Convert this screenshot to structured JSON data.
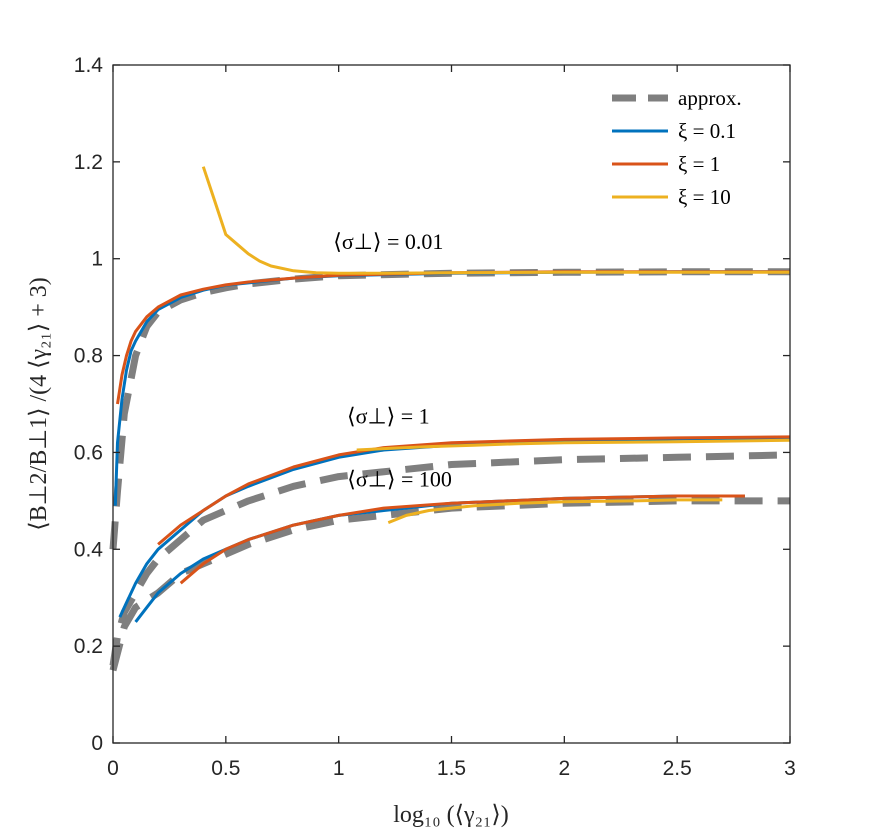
{
  "chart_data": {
    "type": "line",
    "title": "",
    "xlabel": "log₁₀ (⟨γ₂₁⟩)",
    "ylabel": "⟨B⊥2/B⊥1⟩ /(4 ⟨γ₂₁⟩ + 3)",
    "xlim": [
      0,
      3
    ],
    "ylim": [
      0,
      1.4
    ],
    "xticks": [
      0,
      0.5,
      1,
      1.5,
      2,
      2.5,
      3
    ],
    "xtick_labels": [
      "0",
      "0.5",
      "1",
      "1.5",
      "2",
      "2.5",
      "3"
    ],
    "yticks": [
      0,
      0.2,
      0.4,
      0.6,
      0.8,
      1,
      1.2,
      1.4
    ],
    "ytick_labels": [
      "0",
      "0.2",
      "0.4",
      "0.6",
      "0.8",
      "1",
      "1.2",
      "1.4"
    ],
    "grid": false,
    "legend_position": "top-right",
    "colors": {
      "approx": "#7f7f7f",
      "xi_0_1": "#0072bd",
      "xi_1": "#d95319",
      "xi_10": "#edb120",
      "axis": "#262626"
    },
    "legend": [
      {
        "key": "approx",
        "label": "approx."
      },
      {
        "key": "xi_0_1",
        "label": "ξ = 0.1"
      },
      {
        "key": "xi_1",
        "label": "ξ = 1"
      },
      {
        "key": "xi_10",
        "label": "ξ = 10"
      }
    ],
    "annotations": [
      {
        "text": "⟨σ⊥⟩ = 0.01",
        "x": 1.22,
        "y": 1.02
      },
      {
        "text": "⟨σ⊥⟩ = 1",
        "x": 1.22,
        "y": 0.66
      },
      {
        "text": "⟨σ⊥⟩ = 100",
        "x": 1.27,
        "y": 0.53
      }
    ],
    "series": [
      {
        "name": "approx. ⟨σ⊥⟩ = 0.01",
        "key": "approx",
        "dashed": true,
        "x": [
          0,
          0.02,
          0.05,
          0.1,
          0.15,
          0.2,
          0.3,
          0.4,
          0.5,
          0.6,
          0.8,
          1.0,
          1.5,
          2.0,
          2.5,
          3.0
        ],
        "y": [
          0.4,
          0.52,
          0.68,
          0.8,
          0.86,
          0.89,
          0.915,
          0.93,
          0.94,
          0.948,
          0.958,
          0.965,
          0.97,
          0.972,
          0.973,
          0.973
        ]
      },
      {
        "name": "approx. ⟨σ⊥⟩ = 1",
        "key": "approx",
        "dashed": true,
        "x": [
          0,
          0.02,
          0.05,
          0.1,
          0.15,
          0.2,
          0.3,
          0.4,
          0.5,
          0.6,
          0.8,
          1.0,
          1.5,
          2.0,
          2.5,
          3.0
        ],
        "y": [
          0.16,
          0.22,
          0.27,
          0.31,
          0.35,
          0.38,
          0.42,
          0.46,
          0.48,
          0.5,
          0.53,
          0.55,
          0.575,
          0.585,
          0.59,
          0.595
        ]
      },
      {
        "name": "approx. ⟨σ⊥⟩ = 100",
        "key": "approx",
        "dashed": true,
        "x": [
          0,
          0.05,
          0.1,
          0.2,
          0.3,
          0.4,
          0.5,
          0.6,
          0.8,
          1.0,
          1.5,
          2.0,
          2.5,
          3.0
        ],
        "y": [
          0.15,
          0.24,
          0.28,
          0.31,
          0.35,
          0.37,
          0.39,
          0.41,
          0.44,
          0.46,
          0.485,
          0.495,
          0.5,
          0.5
        ]
      },
      {
        "name": "ξ = 0.1 ⟨σ⊥⟩ = 0.01",
        "key": "xi_0_1",
        "x": [
          0.01,
          0.02,
          0.04,
          0.06,
          0.08,
          0.1,
          0.15,
          0.2,
          0.3,
          0.4,
          0.5,
          0.6,
          0.8,
          1.0,
          1.5,
          2.0,
          2.5,
          3.0
        ],
        "y": [
          0.49,
          0.62,
          0.71,
          0.77,
          0.81,
          0.83,
          0.87,
          0.895,
          0.92,
          0.935,
          0.945,
          0.95,
          0.96,
          0.965,
          0.97,
          0.972,
          0.973,
          0.973
        ]
      },
      {
        "name": "ξ = 0.1 ⟨σ⊥⟩ = 1",
        "key": "xi_0_1",
        "x": [
          0.03,
          0.05,
          0.1,
          0.15,
          0.2,
          0.3,
          0.4,
          0.5,
          0.6,
          0.8,
          1.0,
          1.2,
          1.5,
          2.0,
          2.5,
          3.0
        ],
        "y": [
          0.26,
          0.28,
          0.33,
          0.37,
          0.4,
          0.44,
          0.48,
          0.51,
          0.53,
          0.565,
          0.59,
          0.605,
          0.615,
          0.625,
          0.628,
          0.63
        ]
      },
      {
        "name": "ξ = 0.1 ⟨σ⊥⟩ = 100",
        "key": "xi_0_1",
        "x": [
          0.1,
          0.15,
          0.2,
          0.3,
          0.4,
          0.5,
          0.6,
          0.8,
          1.0,
          1.2,
          1.5,
          2.0,
          2.5,
          2.8
        ],
        "y": [
          0.25,
          0.28,
          0.31,
          0.35,
          0.38,
          0.4,
          0.42,
          0.45,
          0.47,
          0.48,
          0.495,
          0.505,
          0.51,
          0.51
        ]
      },
      {
        "name": "ξ = 1 ⟨σ⊥⟩ = 0.01",
        "key": "xi_1",
        "x": [
          0.02,
          0.04,
          0.06,
          0.08,
          0.1,
          0.15,
          0.2,
          0.3,
          0.4,
          0.5,
          0.6,
          0.8,
          1.0,
          1.5,
          2.0,
          2.5,
          3.0
        ],
        "y": [
          0.7,
          0.76,
          0.8,
          0.83,
          0.85,
          0.88,
          0.9,
          0.925,
          0.937,
          0.946,
          0.952,
          0.96,
          0.966,
          0.971,
          0.973,
          0.973,
          0.973
        ]
      },
      {
        "name": "ξ = 1 ⟨σ⊥⟩ = 1",
        "key": "xi_1",
        "x": [
          0.2,
          0.3,
          0.4,
          0.5,
          0.6,
          0.8,
          1.0,
          1.2,
          1.5,
          2.0,
          2.5,
          3.0
        ],
        "y": [
          0.41,
          0.45,
          0.48,
          0.51,
          0.535,
          0.57,
          0.595,
          0.61,
          0.62,
          0.627,
          0.63,
          0.632
        ]
      },
      {
        "name": "ξ = 1 ⟨σ⊥⟩ = 100",
        "key": "xi_1",
        "x": [
          0.3,
          0.4,
          0.5,
          0.6,
          0.8,
          1.0,
          1.2,
          1.5,
          2.0,
          2.5,
          2.8
        ],
        "y": [
          0.33,
          0.37,
          0.4,
          0.42,
          0.45,
          0.47,
          0.485,
          0.495,
          0.505,
          0.51,
          0.51
        ]
      },
      {
        "name": "ξ = 10 ⟨σ⊥⟩ = 0.01",
        "key": "xi_10",
        "x": [
          0.4,
          0.45,
          0.5,
          0.55,
          0.6,
          0.65,
          0.7,
          0.8,
          0.9,
          1.0,
          1.2,
          1.5,
          2.0,
          2.5,
          3.0
        ],
        "y": [
          1.19,
          1.12,
          1.05,
          1.03,
          1.01,
          0.995,
          0.985,
          0.975,
          0.971,
          0.97,
          0.97,
          0.971,
          0.972,
          0.972,
          0.972
        ]
      },
      {
        "name": "ξ = 10 ⟨σ⊥⟩ = 1",
        "key": "xi_10",
        "x": [
          1.08,
          1.2,
          1.4,
          1.6,
          1.8,
          2.0,
          2.5,
          3.0
        ],
        "y": [
          0.605,
          0.608,
          0.612,
          0.615,
          0.618,
          0.62,
          0.622,
          0.625
        ]
      },
      {
        "name": "ξ = 10 ⟨σ⊥⟩ = 100",
        "key": "xi_10",
        "x": [
          1.22,
          1.3,
          1.4,
          1.5,
          1.6,
          1.8,
          2.0,
          2.3,
          2.5,
          2.7
        ],
        "y": [
          0.455,
          0.47,
          0.48,
          0.485,
          0.49,
          0.495,
          0.498,
          0.5,
          0.502,
          0.502
        ]
      }
    ]
  }
}
